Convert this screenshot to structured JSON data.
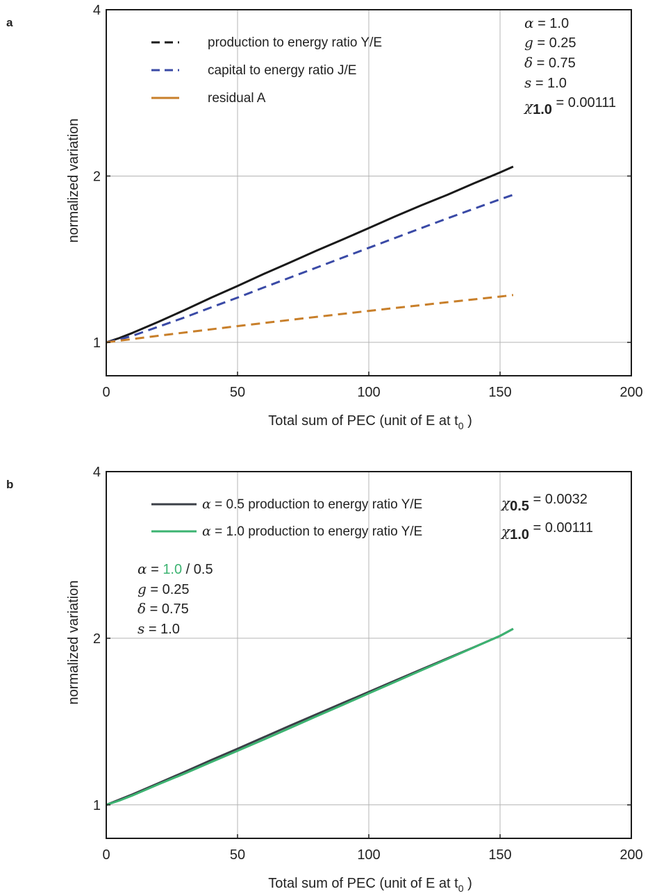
{
  "chart_data": [
    {
      "panel": "a",
      "type": "line",
      "xlabel": "Total sum of PEC   (unit of E at t",
      "xlabel_sub": "0",
      "xlabel_end": " )",
      "ylabel": "normalized variation",
      "xlim": [
        0,
        200
      ],
      "ylim": [
        0.87,
        4
      ],
      "yscale": "log",
      "xticks": [
        0,
        50,
        100,
        150,
        200
      ],
      "xtick_labels": [
        "0",
        "50",
        "100",
        "150",
        "200"
      ],
      "yticks": [
        1,
        2,
        4
      ],
      "ytick_labels": [
        "1",
        "2",
        "4"
      ],
      "grid": true,
      "legend_position": "top-left",
      "series": [
        {
          "name": "production to energy ratio Y/E",
          "color": "#1a1a1a",
          "dash": false,
          "legend_dash": true,
          "x": [
            0,
            5,
            10,
            20,
            30,
            40,
            50,
            60,
            70,
            80,
            90,
            100,
            110,
            120,
            130,
            140,
            150,
            155
          ],
          "y": [
            1.0,
            1.018,
            1.04,
            1.09,
            1.145,
            1.205,
            1.265,
            1.33,
            1.395,
            1.465,
            1.535,
            1.61,
            1.69,
            1.77,
            1.85,
            1.94,
            2.03,
            2.08
          ]
        },
        {
          "name": "capital to energy ratio J/E",
          "color": "#3a4aa6",
          "dash": true,
          "legend_dash": true,
          "x": [
            0,
            5,
            10,
            20,
            30,
            40,
            50,
            60,
            70,
            80,
            90,
            100,
            110,
            120,
            130,
            140,
            150,
            155
          ],
          "y": [
            1.0,
            1.012,
            1.028,
            1.068,
            1.11,
            1.157,
            1.205,
            1.257,
            1.31,
            1.365,
            1.423,
            1.483,
            1.545,
            1.61,
            1.677,
            1.745,
            1.815,
            1.85
          ]
        },
        {
          "name": "residual A",
          "color": "#c87f2a",
          "dash": true,
          "legend_dash": false,
          "x": [
            0,
            25,
            50,
            75,
            100,
            125,
            150,
            155
          ],
          "y": [
            1.0,
            1.035,
            1.07,
            1.105,
            1.14,
            1.175,
            1.21,
            1.218
          ]
        }
      ],
      "params": [
        {
          "sym": "α",
          "text": " = 1.0"
        },
        {
          "sym": "g",
          "text": " = 0.25"
        },
        {
          "sym": "δ",
          "text": " = 0.75"
        },
        {
          "sym": "s",
          "text": " =  1.0"
        }
      ],
      "chi": [
        {
          "sym": "χ",
          "sub": "1.0",
          "text": " = 0.00111"
        }
      ]
    },
    {
      "panel": "b",
      "type": "line",
      "xlabel": "Total sum of PEC   (unit of E at t",
      "xlabel_sub": "0",
      "xlabel_end": " )",
      "ylabel": "normalized variation",
      "xlim": [
        0,
        200
      ],
      "ylim": [
        0.87,
        4
      ],
      "yscale": "log",
      "xticks": [
        0,
        50,
        100,
        150,
        200
      ],
      "xtick_labels": [
        "0",
        "50",
        "100",
        "150",
        "200"
      ],
      "yticks": [
        1,
        2,
        4
      ],
      "ytick_labels": [
        "1",
        "2",
        "4"
      ],
      "grid": true,
      "legend_position": "top-left",
      "series": [
        {
          "name": "production to energy ratio Y/E",
          "alpha_label": "α",
          "alpha_text": " = 0.5 ",
          "color": "#3b3f47",
          "dash": false,
          "x": [
            0,
            10,
            20,
            30,
            40,
            50,
            60,
            70,
            80,
            90,
            100,
            110,
            120,
            130,
            140,
            150,
            155
          ],
          "y": [
            1.0,
            1.045,
            1.095,
            1.148,
            1.205,
            1.263,
            1.325,
            1.39,
            1.457,
            1.527,
            1.6,
            1.677,
            1.757,
            1.84,
            1.926,
            2.02,
            2.08
          ]
        },
        {
          "name": "production to energy ratio Y/E",
          "alpha_label": "α",
          "alpha_text": " = 1.0 ",
          "color": "#3cb371",
          "dash": false,
          "x": [
            0,
            5,
            10,
            20,
            30,
            40,
            50,
            60,
            70,
            80,
            90,
            100,
            110,
            120,
            130,
            140,
            150,
            155
          ],
          "y": [
            1.0,
            1.018,
            1.04,
            1.09,
            1.14,
            1.195,
            1.252,
            1.312,
            1.377,
            1.445,
            1.515,
            1.59,
            1.668,
            1.75,
            1.835,
            1.925,
            2.02,
            2.08
          ]
        }
      ],
      "params": [
        {
          "sym": "g",
          "text": " = 0.25"
        },
        {
          "sym": "δ",
          "text": " = 0.75"
        },
        {
          "sym": "s",
          "text": " =  1.0"
        }
      ],
      "alpha_param": {
        "sym": "α",
        "eq": " = ",
        "green": "1.0",
        "rest": " / 0.5",
        "green_color": "#3cb371"
      },
      "chi": [
        {
          "sym": "χ",
          "sub": "0.5",
          "text": " = 0.0032"
        },
        {
          "sym": "χ",
          "sub": "1.0",
          "text": " = 0.00111"
        }
      ]
    }
  ]
}
